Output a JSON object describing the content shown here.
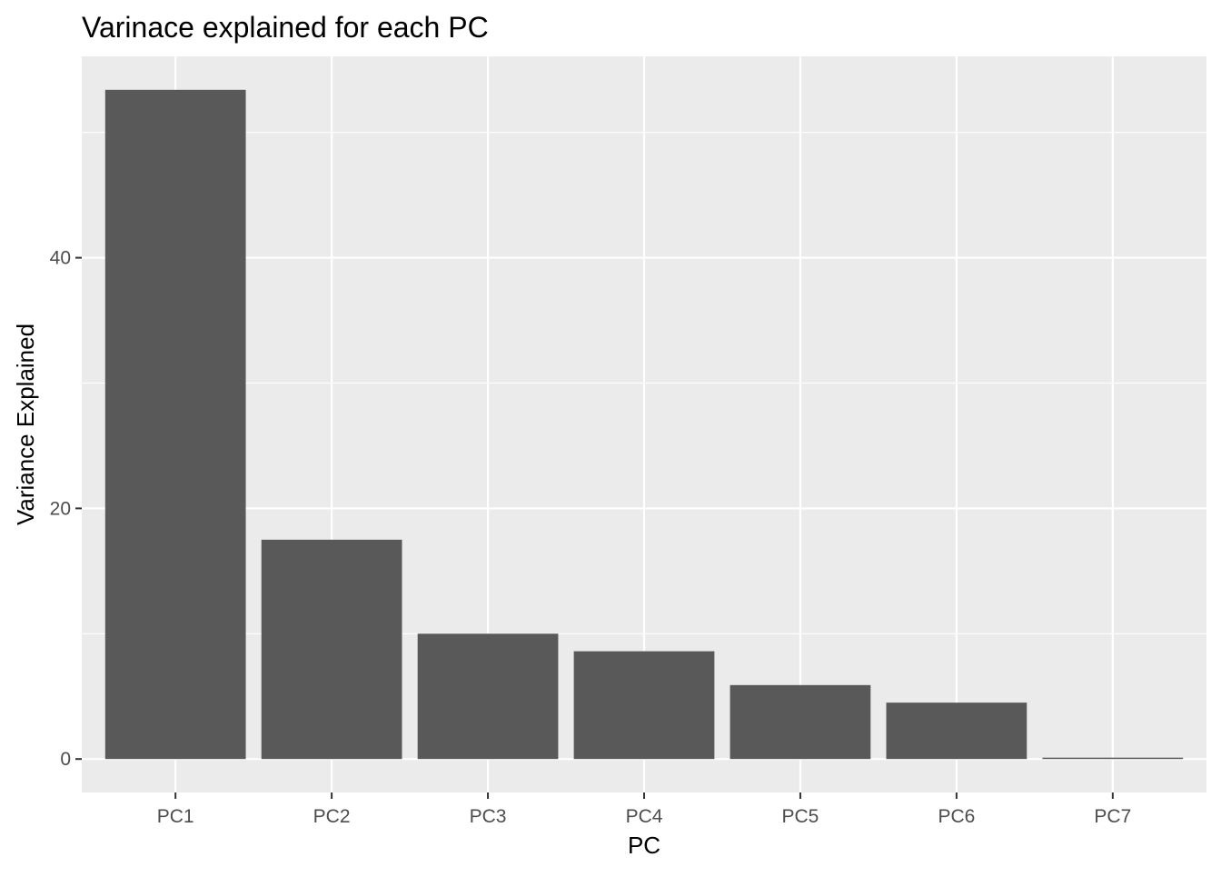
{
  "chart_data": {
    "type": "bar",
    "title": "Varinace explained for each PC",
    "xlabel": "PC",
    "ylabel": "Variance Explained",
    "categories": [
      "PC1",
      "PC2",
      "PC3",
      "PC4",
      "PC5",
      "PC6",
      "PC7"
    ],
    "values": [
      53.4,
      17.5,
      10.0,
      8.6,
      5.9,
      4.5,
      0.1
    ],
    "ylim": [
      -2.67,
      56.07
    ],
    "yticks": [
      0,
      20,
      40
    ],
    "ytick_labels": [
      "0",
      "20",
      "40"
    ],
    "grid": true,
    "legend": "none",
    "colors": {
      "bar": "#595959",
      "panel_background": "#ebebeb",
      "grid": "#ffffff",
      "tick_text": "#4d4d4d",
      "tick_mark": "#333333"
    }
  }
}
